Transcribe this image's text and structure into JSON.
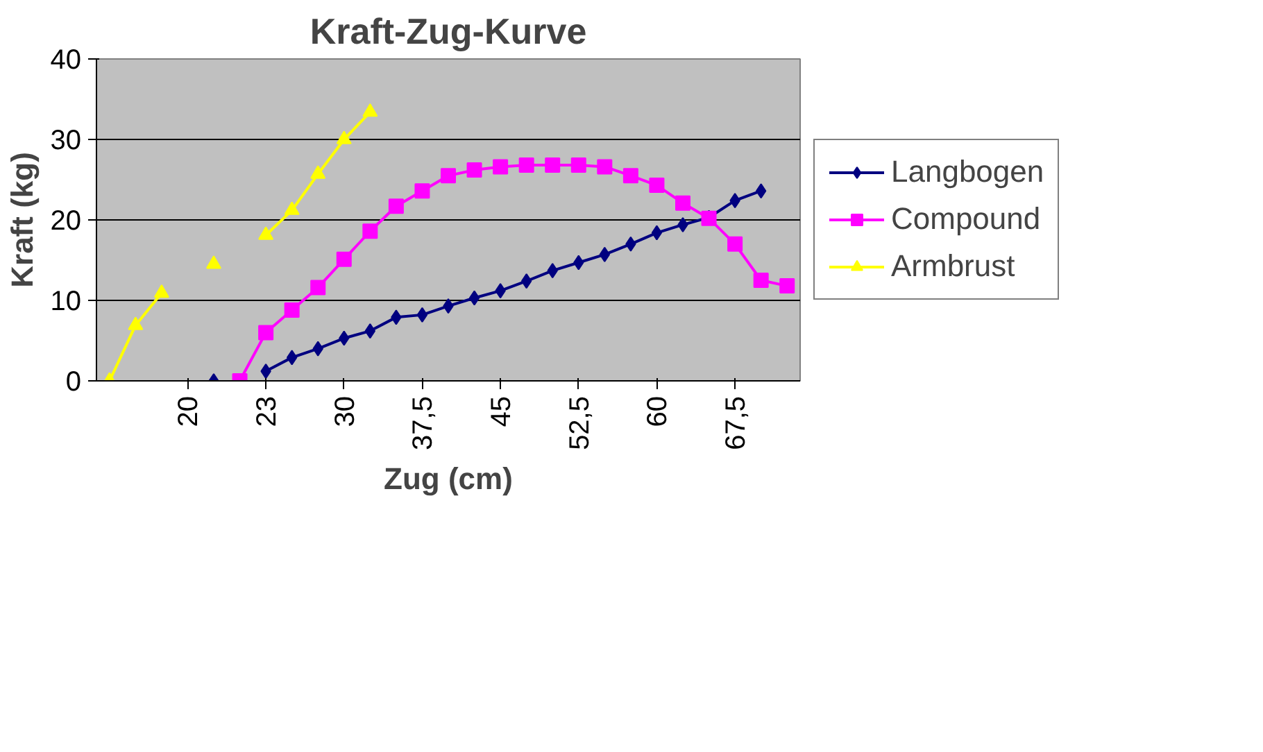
{
  "chart_data": {
    "type": "line",
    "title": "Kraft-Zug-Kurve",
    "xlabel": "Zug (cm)",
    "ylabel": "Kraft (kg)",
    "categories": [
      null,
      null,
      null,
      "20",
      null,
      null,
      "23",
      null,
      null,
      "30",
      null,
      null,
      "37,5",
      null,
      null,
      "45",
      null,
      null,
      "52,5",
      null,
      null,
      "60",
      null,
      null,
      "67,5",
      null,
      null
    ],
    "ylim": [
      0,
      40
    ],
    "yticks": [
      0,
      10,
      20,
      30,
      40
    ],
    "grid": "y",
    "legend": "right",
    "line_style": "solid",
    "series": [
      {
        "name": "Langbogen",
        "color": "#000080",
        "marker": "diamond",
        "values": [
          null,
          null,
          null,
          null,
          0,
          null,
          1.2,
          2.9,
          4,
          5.3,
          6.2,
          7.9,
          8.2,
          9.3,
          10.3,
          11.2,
          12.4,
          13.7,
          14.7,
          15.7,
          17,
          18.4,
          19.4,
          20.3,
          22.4,
          23.6,
          null
        ]
      },
      {
        "name": "Compound",
        "color": "#ff00ff",
        "marker": "square",
        "values": [
          null,
          null,
          null,
          null,
          null,
          0,
          6,
          8.8,
          11.6,
          15.1,
          18.6,
          21.7,
          23.6,
          25.5,
          26.2,
          26.6,
          26.8,
          26.8,
          26.8,
          26.6,
          25.5,
          24.3,
          22.1,
          20.2,
          17,
          12.5,
          11.8
        ]
      },
      {
        "name": "Armbrust",
        "color": "#ffff00",
        "marker": "triangle",
        "values": [
          0,
          6.9,
          10.9,
          null,
          14.5,
          null,
          18.1,
          21.2,
          25.7,
          30,
          33.4,
          null,
          null,
          null,
          null,
          null,
          null,
          null,
          null,
          null,
          null,
          null,
          null,
          null,
          null,
          null,
          null
        ]
      }
    ]
  }
}
